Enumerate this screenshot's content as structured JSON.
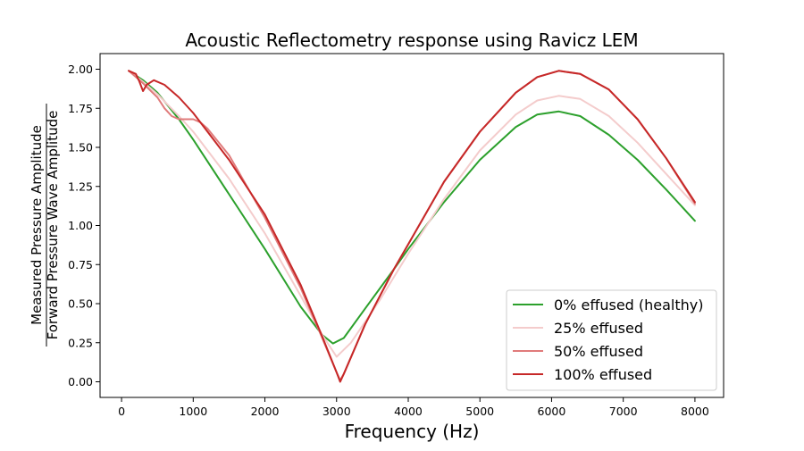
{
  "chart_data": {
    "type": "line",
    "title": "Acoustic Reflectometry response using Ravicz LEM",
    "xlabel": "Frequency (Hz)",
    "ylabel_numerator": "Measured Pressure Amplitude",
    "ylabel_denominator": "Forward Pressure Wave Amplitude",
    "xlim": [
      -300,
      8400
    ],
    "ylim": [
      -0.1,
      2.1
    ],
    "xticks": [
      0,
      1000,
      2000,
      3000,
      4000,
      5000,
      6000,
      7000,
      8000
    ],
    "yticks": [
      0.0,
      0.25,
      0.5,
      0.75,
      1.0,
      1.25,
      1.5,
      1.75,
      2.0
    ],
    "grid": false,
    "legend_position": "lower-right",
    "series": [
      {
        "name": "0% effused (healthy)",
        "color": "#2ca02c",
        "x": [
          100,
          300,
          500,
          800,
          1000,
          1500,
          2000,
          2500,
          2800,
          2950,
          3100,
          3400,
          3800,
          4000,
          4500,
          5000,
          5500,
          5800,
          6100,
          6400,
          6800,
          7200,
          7600,
          8000
        ],
        "y": [
          1.99,
          1.93,
          1.85,
          1.68,
          1.55,
          1.2,
          0.85,
          0.48,
          0.3,
          0.245,
          0.28,
          0.47,
          0.72,
          0.85,
          1.15,
          1.42,
          1.63,
          1.71,
          1.73,
          1.7,
          1.58,
          1.42,
          1.23,
          1.03
        ]
      },
      {
        "name": "25% effused",
        "color": "#f4cccc",
        "x": [
          100,
          300,
          500,
          800,
          1000,
          1500,
          2000,
          2500,
          2800,
          3000,
          3200,
          3600,
          4000,
          4500,
          5000,
          5500,
          5800,
          6100,
          6400,
          6800,
          7200,
          7600,
          8000
        ],
        "y": [
          1.99,
          1.92,
          1.84,
          1.7,
          1.6,
          1.3,
          0.95,
          0.55,
          0.3,
          0.16,
          0.25,
          0.52,
          0.82,
          1.17,
          1.48,
          1.71,
          1.8,
          1.83,
          1.81,
          1.7,
          1.53,
          1.33,
          1.13
        ]
      },
      {
        "name": "50% effused",
        "color": "#e07b7b",
        "x": [
          100,
          300,
          500,
          600,
          700,
          800,
          900,
          1000,
          1100,
          1200,
          1500,
          2000,
          2500,
          2800,
          3000,
          3050,
          3100,
          3400,
          3800,
          4000,
          4500,
          5000,
          5500,
          5800,
          6100,
          6400,
          6800,
          7200,
          7600,
          8000
        ],
        "y": [
          1.99,
          1.91,
          1.82,
          1.75,
          1.7,
          1.68,
          1.68,
          1.68,
          1.66,
          1.62,
          1.45,
          1.05,
          0.6,
          0.28,
          0.06,
          0.01,
          0.05,
          0.37,
          0.72,
          0.88,
          1.28,
          1.6,
          1.85,
          1.95,
          1.99,
          1.97,
          1.87,
          1.68,
          1.43,
          1.14
        ]
      },
      {
        "name": "100% effused",
        "color": "#c62828",
        "x": [
          100,
          200,
          250,
          300,
          350,
          450,
          600,
          800,
          1000,
          1500,
          2000,
          2500,
          2800,
          3000,
          3050,
          3100,
          3400,
          3800,
          4000,
          4500,
          5000,
          5500,
          5800,
          6100,
          6400,
          6800,
          7200,
          7600,
          8000
        ],
        "y": [
          1.99,
          1.97,
          1.92,
          1.86,
          1.9,
          1.93,
          1.9,
          1.82,
          1.72,
          1.42,
          1.07,
          0.62,
          0.29,
          0.06,
          0.0,
          0.05,
          0.37,
          0.72,
          0.88,
          1.28,
          1.6,
          1.85,
          1.95,
          1.99,
          1.97,
          1.87,
          1.68,
          1.43,
          1.15
        ]
      }
    ]
  }
}
